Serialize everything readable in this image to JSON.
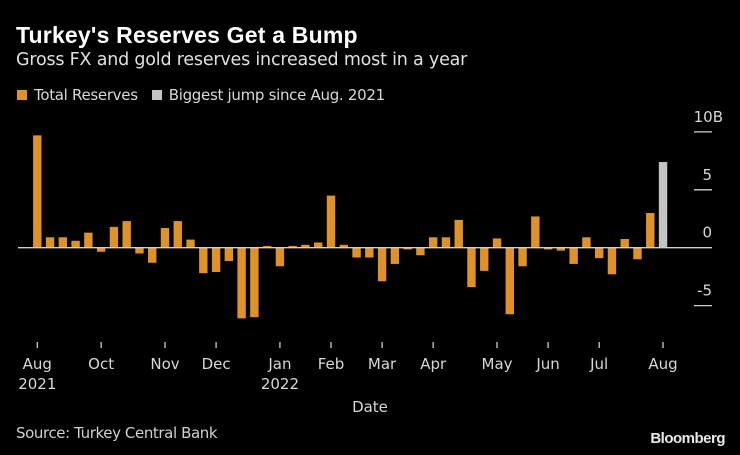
{
  "header": {
    "title": "Turkey's Reserves Get a Bump",
    "subtitle": "Gross FX and gold reserves increased most in a year"
  },
  "footer": {
    "source": "Source: Turkey Central Bank",
    "brand": "Bloomberg"
  },
  "colors": {
    "background": "#000000",
    "bar": "#e0922a",
    "highlight": "#c4c4c4",
    "axis": "#cfcfcf"
  },
  "chart_data": {
    "type": "bar",
    "title": "Turkey's Reserves Get a Bump",
    "subtitle": "Gross FX and gold reserves increased most in a year",
    "xlabel": "Date",
    "ylabel": "",
    "ylim": [
      -5,
      10
    ],
    "y_unit": "B",
    "y_ticks": [
      {
        "value": 10,
        "label": "10B"
      },
      {
        "value": 5,
        "label": "5"
      },
      {
        "value": 0,
        "label": "0"
      },
      {
        "value": -5,
        "label": "-5"
      }
    ],
    "x_ticks": [
      {
        "index": 0,
        "label": "Aug",
        "sublabel": "2021"
      },
      {
        "index": 5,
        "label": "Oct",
        "sublabel": ""
      },
      {
        "index": 10,
        "label": "Nov",
        "sublabel": ""
      },
      {
        "index": 14,
        "label": "Dec",
        "sublabel": ""
      },
      {
        "index": 19,
        "label": "Jan",
        "sublabel": "2022"
      },
      {
        "index": 23,
        "label": "Feb",
        "sublabel": ""
      },
      {
        "index": 27,
        "label": "Mar",
        "sublabel": ""
      },
      {
        "index": 31,
        "label": "Apr",
        "sublabel": ""
      },
      {
        "index": 36,
        "label": "May",
        "sublabel": ""
      },
      {
        "index": 40,
        "label": "Jun",
        "sublabel": ""
      },
      {
        "index": 44,
        "label": "Jul",
        "sublabel": ""
      },
      {
        "index": 49,
        "label": "Aug",
        "sublabel": ""
      }
    ],
    "legend": [
      {
        "name": "Total Reserves",
        "color": "#e0922a"
      },
      {
        "name": "Biggest jump since Aug. 2021",
        "color": "#c4c4c4"
      }
    ],
    "legend_position": "top-left",
    "grid": false,
    "series": [
      {
        "name": "Total Reserves",
        "values": [
          9.7,
          0.9,
          0.9,
          0.6,
          1.3,
          -0.35,
          1.8,
          2.3,
          -0.5,
          -1.3,
          1.7,
          2.3,
          0.7,
          -2.2,
          -2.1,
          -1.15,
          -6.1,
          -6.0,
          0.15,
          -1.6,
          0.15,
          0.25,
          0.45,
          4.5,
          0.25,
          -0.85,
          -0.85,
          -2.9,
          -1.4,
          -0.15,
          -0.65,
          0.9,
          0.9,
          2.4,
          -3.4,
          -2.0,
          0.8,
          -5.75,
          -1.6,
          2.7,
          -0.15,
          -0.25,
          -1.4,
          0.9,
          -0.9,
          -2.3,
          0.75,
          -1.0,
          3.0,
          null
        ]
      },
      {
        "name": "Biggest jump since Aug. 2021",
        "values": [
          null,
          null,
          null,
          null,
          null,
          null,
          null,
          null,
          null,
          null,
          null,
          null,
          null,
          null,
          null,
          null,
          null,
          null,
          null,
          null,
          null,
          null,
          null,
          null,
          null,
          null,
          null,
          null,
          null,
          null,
          null,
          null,
          null,
          null,
          null,
          null,
          null,
          null,
          null,
          null,
          null,
          null,
          null,
          null,
          null,
          null,
          null,
          null,
          null,
          7.4
        ]
      }
    ]
  }
}
